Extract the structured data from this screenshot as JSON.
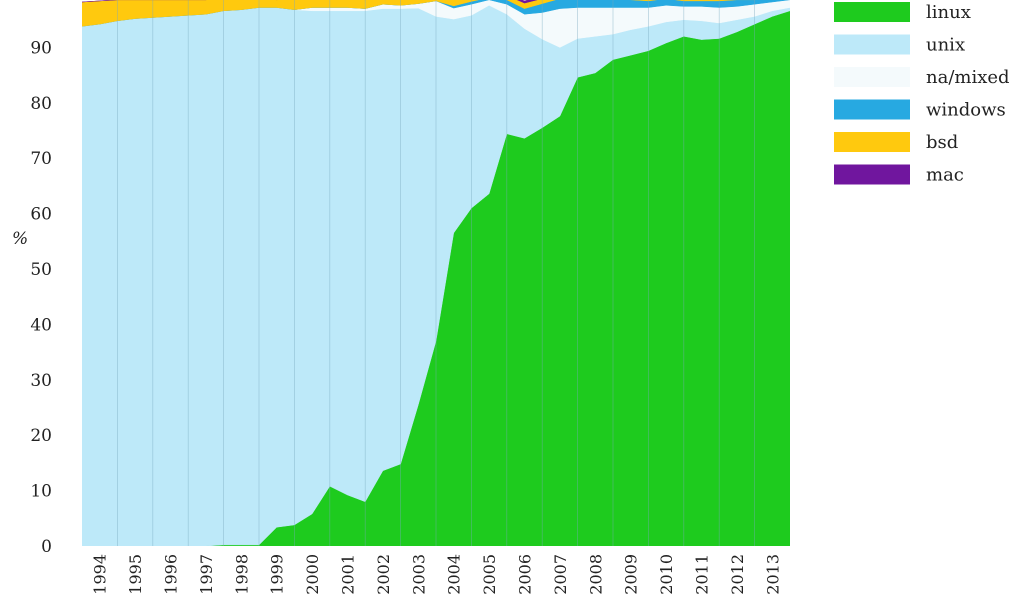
{
  "chart_data": {
    "type": "area",
    "stacked": true,
    "normalized_percent": true,
    "ylabel": "%",
    "ylim": [
      0,
      100
    ],
    "yticks": [
      0,
      10,
      20,
      30,
      40,
      50,
      60,
      70,
      80,
      90,
      100
    ],
    "x": [
      1993.5,
      1994,
      1994.5,
      1995,
      1995.5,
      1996,
      1996.5,
      1997,
      1997.5,
      1998,
      1998.5,
      1999,
      1999.5,
      2000,
      2000.5,
      2001,
      2001.5,
      2002,
      2002.5,
      2003,
      2003.5,
      2004,
      2004.5,
      2005,
      2005.5,
      2006,
      2006.5,
      2007,
      2007.5,
      2008,
      2008.5,
      2009,
      2009.5,
      2010,
      2010.5,
      2011,
      2011.5,
      2012,
      2012.5,
      2013,
      2013.5
    ],
    "xticks": [
      "1994",
      "1995",
      "1996",
      "1997",
      "1998",
      "1999",
      "2000",
      "2001",
      "2002",
      "2003",
      "2004",
      "2005",
      "2006",
      "2007",
      "2008",
      "2009",
      "2010",
      "2011",
      "2012",
      "2013"
    ],
    "grid": true,
    "legend_position": "right",
    "series": [
      {
        "name": "linux",
        "color": "#1ecb1e",
        "values": [
          0,
          0,
          0,
          0,
          0,
          0,
          0,
          0,
          0.2,
          0.2,
          0.2,
          3.4,
          3.8,
          5.8,
          10.8,
          9.2,
          8.0,
          13.6,
          14.8,
          25.5,
          37.0,
          56.5,
          61.0,
          63.6,
          74.4,
          73.6,
          75.5,
          77.6,
          84.6,
          85.4,
          87.8,
          88.6,
          89.4,
          90.8,
          92.0,
          91.4,
          91.6,
          92.8,
          94.2,
          95.6,
          96.6
        ]
      },
      {
        "name": "unix",
        "color": "#bde9f9",
        "values": [
          93.8,
          94.2,
          94.8,
          95.2,
          95.4,
          95.6,
          95.8,
          96.0,
          96.4,
          96.6,
          97.0,
          93.8,
          93.0,
          90.8,
          85.8,
          87.4,
          88.6,
          83.4,
          82.2,
          71.6,
          58.6,
          38.6,
          34.8,
          34.0,
          21.6,
          19.8,
          16.0,
          12.4,
          7.0,
          6.6,
          4.6,
          4.6,
          4.4,
          3.8,
          3.0,
          3.4,
          2.8,
          2.2,
          1.4,
          1.0,
          0.6
        ]
      },
      {
        "name": "na/mixed",
        "color": "#f4fafc",
        "values": [
          0,
          0,
          0,
          0,
          0,
          0,
          0,
          0,
          0,
          0,
          0,
          0,
          0,
          0.6,
          0.6,
          0.6,
          0.4,
          0.8,
          0.6,
          0.8,
          2.8,
          2.0,
          2.0,
          1.0,
          1.8,
          2.6,
          4.8,
          7.0,
          5.6,
          5.2,
          4.8,
          4.0,
          3.4,
          3.0,
          2.4,
          2.6,
          2.8,
          2.4,
          2.2,
          1.6,
          1.4
        ]
      },
      {
        "name": "windows",
        "color": "#27a9e1",
        "values": [
          0,
          0,
          0,
          0,
          0,
          0,
          0,
          0,
          0,
          0,
          0,
          0,
          0,
          0,
          0,
          0,
          0,
          0,
          0,
          0,
          0,
          0.4,
          0.5,
          0.4,
          0.8,
          1.0,
          1.6,
          1.8,
          1.8,
          1.6,
          1.6,
          1.4,
          1.2,
          1.2,
          1.0,
          1.0,
          1.2,
          1.2,
          0.8,
          0.6,
          0.4
        ]
      },
      {
        "name": "bsd",
        "color": "#ffc90e",
        "values": [
          4.4,
          4.2,
          3.8,
          3.4,
          3.2,
          3.0,
          2.8,
          2.6,
          2.2,
          2.0,
          1.8,
          1.4,
          2.0,
          2.0,
          2.0,
          1.6,
          1.6,
          1.6,
          1.6,
          1.4,
          1.0,
          1.8,
          1.3,
          0.6,
          0.8,
          1.0,
          0.9,
          0.6,
          0.4,
          0.6,
          0.6,
          0.6,
          0.8,
          0.6,
          0.8,
          0.8,
          0.8,
          0.6,
          0.6,
          0.6,
          0.4
        ]
      },
      {
        "name": "mac",
        "color": "#70169e",
        "values": [
          0,
          0,
          0,
          0,
          0,
          0,
          0,
          0,
          0,
          0,
          0,
          0,
          0,
          0,
          0,
          0,
          0,
          0,
          0,
          0,
          0,
          0,
          0,
          0.2,
          0.2,
          0.4,
          0.4,
          0.2,
          0.2,
          0.2,
          0.2,
          0.2,
          0.2,
          0.2,
          0.2,
          0.2,
          0.2,
          0.2,
          0.2,
          0.2,
          0.2
        ]
      }
    ]
  }
}
